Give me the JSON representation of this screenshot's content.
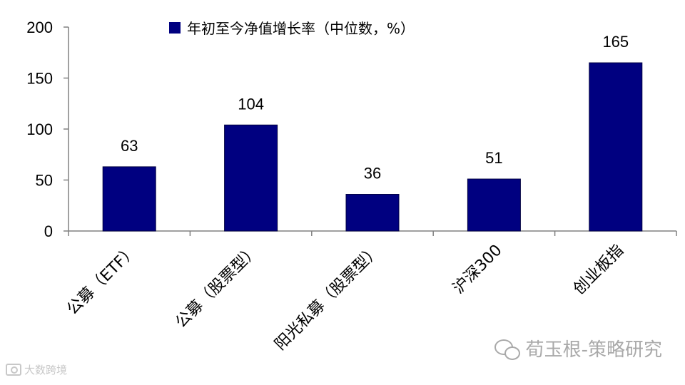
{
  "chart_data": {
    "type": "bar",
    "categories": [
      "公募（ETF）",
      "公募（股票型）",
      "阳光私募（股票型）",
      "沪深300",
      "创业板指"
    ],
    "series": [
      {
        "name": "年初至今净值增长率（中位数，%）",
        "values": [
          63,
          104,
          36,
          51,
          165
        ]
      }
    ],
    "data_labels": [
      "63",
      "104",
      "36",
      "51",
      "165"
    ],
    "ylim": [
      0,
      200
    ],
    "yticks": [
      0,
      50,
      100,
      150,
      200
    ],
    "ytick_labels": [
      "0",
      "50",
      "100",
      "150",
      "200"
    ],
    "grid": false,
    "legend_position": "top",
    "bar_color": "#000080"
  },
  "watermarks": {
    "right": "荀玉根-策略研究",
    "left": "大数跨境"
  }
}
